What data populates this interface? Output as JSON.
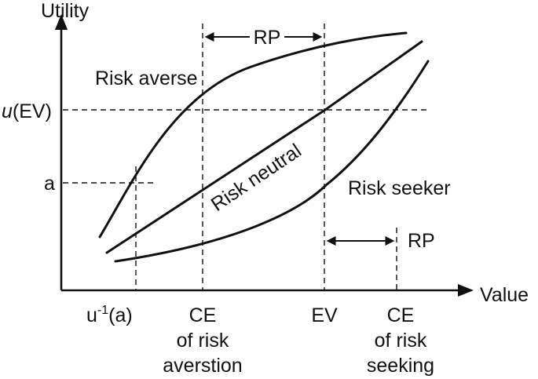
{
  "axes": {
    "y_label": "Utility",
    "x_label": "Value"
  },
  "y_ticks": {
    "u_ev": "u(EV)",
    "u_ev_func": "u",
    "u_ev_arg": "(EV)",
    "a": "a"
  },
  "x_ticks": {
    "u_inv_a": "u-1(a)",
    "u_inv_base": "u",
    "u_inv_sup": "-1",
    "u_inv_arg": "(a)",
    "ce_aversion": [
      "CE",
      "of risk",
      "averstion"
    ],
    "ev": "EV",
    "ce_seeking": [
      "CE",
      "of risk",
      "seeking"
    ]
  },
  "curves": {
    "risk_averse": "Risk averse",
    "risk_neutral": "Risk neutral",
    "risk_seeker": "Risk seeker"
  },
  "premiums": {
    "top": "RP",
    "right": "RP"
  },
  "colors": {
    "ink": "#111111",
    "background": "#ffffff"
  }
}
